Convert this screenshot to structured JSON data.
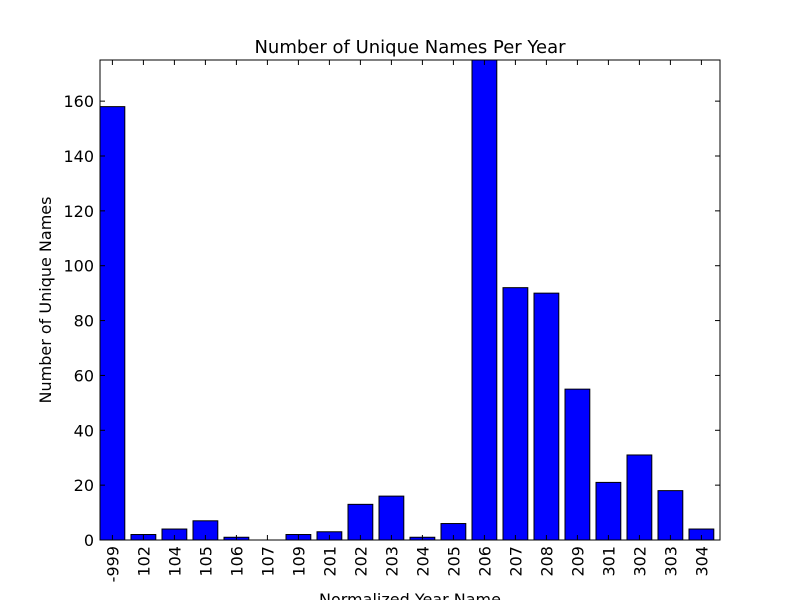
{
  "chart_data": {
    "type": "bar",
    "title": "Number of Unique Names Per Year",
    "xlabel": "Normalized Year Name",
    "ylabel": "Number of Unique Names",
    "categories": [
      "-999",
      "102",
      "104",
      "105",
      "106",
      "107",
      "109",
      "201",
      "202",
      "203",
      "204",
      "205",
      "206",
      "207",
      "208",
      "209",
      "301",
      "302",
      "303",
      "304"
    ],
    "values": [
      158,
      2,
      4,
      7,
      1,
      0,
      2,
      3,
      13,
      16,
      1,
      6,
      175,
      92,
      90,
      55,
      21,
      31,
      18,
      4
    ],
    "ylim": [
      0,
      175
    ],
    "yticks": [
      "0",
      "20",
      "40",
      "60",
      "80",
      "100",
      "120",
      "140",
      "160"
    ],
    "bar_color": "#0000ff",
    "grid": false,
    "legend": "none"
  }
}
